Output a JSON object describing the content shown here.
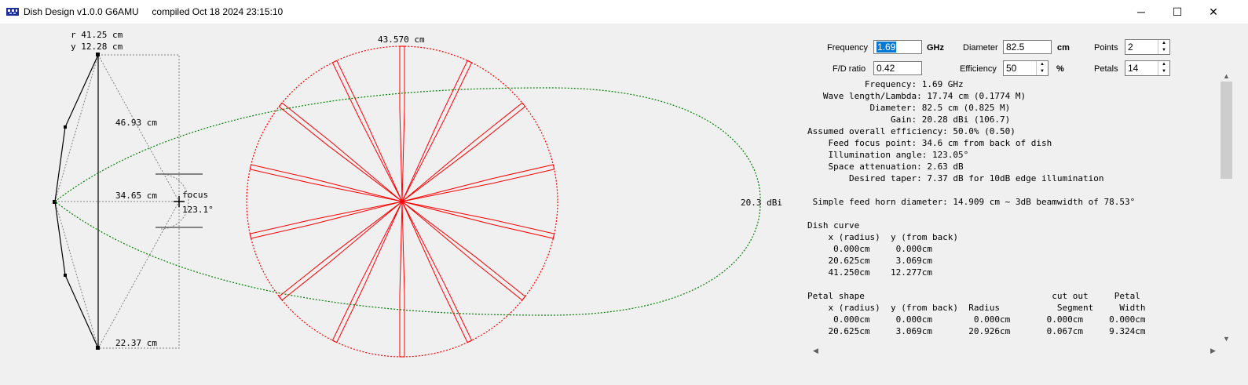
{
  "window": {
    "title": "Dish Design v1.0.0 G6AMU     compiled Oct 18 2024 23:15:10",
    "minimize_glyph": "─",
    "maximize_glyph": "☐",
    "close_glyph": "✕"
  },
  "drawing": {
    "rim_r": "r 41.25 cm",
    "rim_y": "y 12.28 cm",
    "slant_top": "46.93 cm",
    "focal_length": "34.65 cm",
    "focus_label": "focus",
    "focus_angle": "123.1°",
    "slant_bottom": "22.37 cm",
    "petal_diameter": "43.570 cm",
    "beam_gain": "20.3 dBi",
    "petal_count": 14,
    "colors": {
      "petal": "#ff0000",
      "beam": "#008000",
      "dish": "#000000"
    }
  },
  "inputs": {
    "frequency_label": "Frequency",
    "frequency_value": "1.69",
    "frequency_unit": "GHz",
    "diameter_label": "Diameter",
    "diameter_value": "82.5",
    "diameter_unit": "cm",
    "points_label": "Points",
    "points_value": "2",
    "fd_label": "F/D ratio",
    "fd_value": "0.42",
    "efficiency_label": "Efficiency",
    "efficiency_value": "50",
    "efficiency_unit": "%",
    "petals_label": "Petals",
    "petals_value": "14"
  },
  "report": {
    "text": "           Frequency: 1.69 GHz\n   Wave length/Lambda: 17.74 cm (0.1774 M)\n            Diameter: 82.5 cm (0.825 M)\n                Gain: 20.28 dBi (106.7)\nAssumed overall efficiency: 50.0% (0.50)\n    Feed focus point: 34.6 cm from back of dish\n    Illumination angle: 123.05°\n    Space attenuation: 2.63 dB\n        Desired taper: 7.37 dB for 10dB edge illumination\n\n Simple feed horn diameter: 14.909 cm ~ 3dB beamwidth of 78.53°\n\nDish curve\n    x (radius)  y (from back)\n     0.000cm     0.000cm\n    20.625cm     3.069cm\n    41.250cm    12.277cm\n\nPetal shape                                    cut out     Petal\n    x (radius)  y (from back)  Radius           Segment     Width\n     0.000cm     0.000cm        0.000cm       0.000cm     0.000cm\n    20.625cm     3.069cm       20.926cm       0.067cm     9.324cm"
  }
}
